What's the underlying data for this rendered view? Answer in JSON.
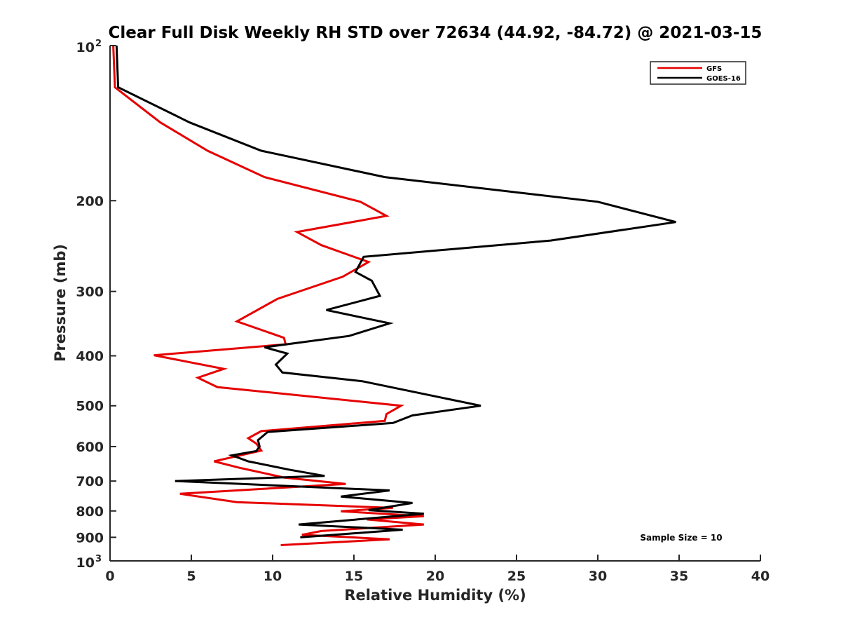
{
  "chart_data": {
    "type": "line",
    "title": "Clear Full Disk Weekly RH STD over 72634 (44.92, -84.72) @ 2021-03-15",
    "xlabel": "Relative Humidity (%)",
    "ylabel": "Pressure (mb)",
    "xlim": [
      0,
      40
    ],
    "ylim": [
      100,
      1000
    ],
    "yscale": "log",
    "y_reversed": true,
    "grid": false,
    "x_ticks": [
      0,
      5,
      10,
      15,
      20,
      25,
      30,
      35,
      40
    ],
    "x_tick_labels": [
      "0",
      "5",
      "10",
      "15",
      "20",
      "25",
      "30",
      "35",
      "40"
    ],
    "y_ticks": [
      {
        "value": 100,
        "label": "10",
        "sup": "2"
      },
      {
        "value": 200,
        "label": "200",
        "sup": ""
      },
      {
        "value": 300,
        "label": "300",
        "sup": ""
      },
      {
        "value": 400,
        "label": "400",
        "sup": ""
      },
      {
        "value": 500,
        "label": "500",
        "sup": ""
      },
      {
        "value": 600,
        "label": "600",
        "sup": ""
      },
      {
        "value": 700,
        "label": "700",
        "sup": ""
      },
      {
        "value": 800,
        "label": "800",
        "sup": ""
      },
      {
        "value": 900,
        "label": "900",
        "sup": ""
      },
      {
        "value": 1000,
        "label": "10",
        "sup": "3"
      }
    ],
    "legend": {
      "position": "top-right",
      "entries": [
        "GFS",
        "GOES-16"
      ]
    },
    "annotation": "Sample Size = 10",
    "series": [
      {
        "name": "GFS",
        "color": "#e60000",
        "points": [
          [
            0.2,
            100
          ],
          [
            0.3,
            120.5
          ],
          [
            3.1,
            141
          ],
          [
            6.0,
            160
          ],
          [
            9.5,
            180
          ],
          [
            15.4,
            201
          ],
          [
            17.0,
            214
          ],
          [
            11.5,
            230
          ],
          [
            13.0,
            244
          ],
          [
            15.9,
            263
          ],
          [
            14.3,
            281
          ],
          [
            10.3,
            310
          ],
          [
            7.8,
            343
          ],
          [
            10.7,
            369
          ],
          [
            10.8,
            380
          ],
          [
            2.7,
            399
          ],
          [
            7.0,
            424
          ],
          [
            5.4,
            441
          ],
          [
            6.6,
            460
          ],
          [
            17.9,
            500
          ],
          [
            17.0,
            519
          ],
          [
            16.9,
            535
          ],
          [
            9.3,
            560
          ],
          [
            8.5,
            578
          ],
          [
            9.0,
            592
          ],
          [
            9.3,
            611
          ],
          [
            6.4,
            641
          ],
          [
            8.0,
            660
          ],
          [
            10.7,
            689
          ],
          [
            14.5,
            709
          ],
          [
            4.3,
            741
          ],
          [
            7.8,
            769
          ],
          [
            17.4,
            789
          ],
          [
            14.2,
            801
          ],
          [
            19.3,
            819
          ],
          [
            15.8,
            831
          ],
          [
            19.3,
            850
          ],
          [
            13.0,
            875
          ],
          [
            11.8,
            890
          ],
          [
            17.2,
            908
          ],
          [
            10.5,
            932
          ]
        ]
      },
      {
        "name": "GOES-16",
        "color": "#000000",
        "points": [
          [
            0.4,
            100
          ],
          [
            0.5,
            120.5
          ],
          [
            4.9,
            141
          ],
          [
            9.3,
            160
          ],
          [
            16.9,
            180
          ],
          [
            30.0,
            201
          ],
          [
            34.8,
            220
          ],
          [
            27.1,
            239
          ],
          [
            15.6,
            257
          ],
          [
            15.1,
            275
          ],
          [
            16.1,
            286
          ],
          [
            16.6,
            306
          ],
          [
            13.3,
            326
          ],
          [
            17.2,
            346
          ],
          [
            14.7,
            366
          ],
          [
            9.5,
            385
          ],
          [
            10.9,
            396
          ],
          [
            10.2,
            416
          ],
          [
            10.6,
            431
          ],
          [
            15.5,
            448
          ],
          [
            22.8,
            500
          ],
          [
            18.6,
            522
          ],
          [
            17.4,
            540
          ],
          [
            9.7,
            562
          ],
          [
            9.1,
            583
          ],
          [
            9.2,
            600
          ],
          [
            9.0,
            612
          ],
          [
            7.5,
            624
          ],
          [
            8.5,
            641
          ],
          [
            11.0,
            665
          ],
          [
            13.2,
            684
          ],
          [
            4.0,
            700
          ],
          [
            17.2,
            730
          ],
          [
            14.2,
            750
          ],
          [
            18.6,
            772
          ],
          [
            15.9,
            797
          ],
          [
            19.3,
            810
          ],
          [
            11.6,
            850
          ],
          [
            18.0,
            870
          ],
          [
            11.7,
            900
          ]
        ]
      }
    ]
  }
}
